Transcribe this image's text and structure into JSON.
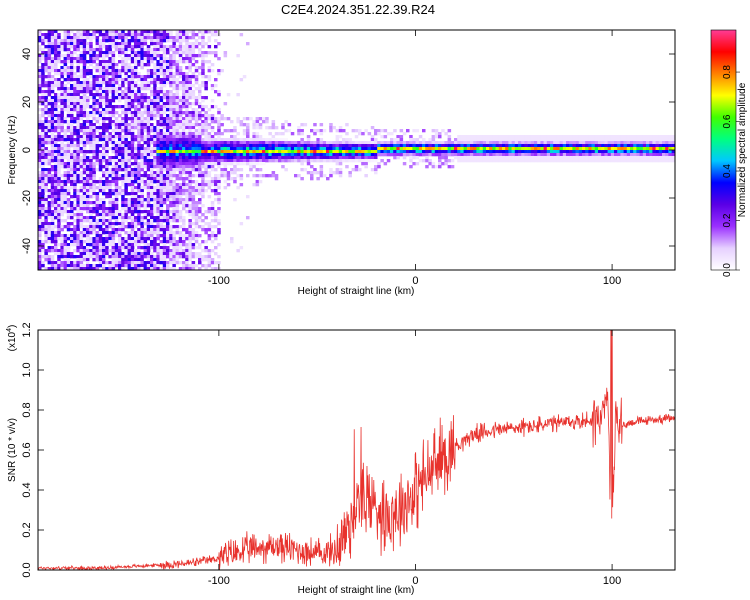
{
  "title": "C2E4.2024.351.22.39.R24",
  "chart_data": [
    {
      "type": "heatmap",
      "xlabel": "Height of straight line (km)",
      "ylabel": "Frequency (Hz)",
      "xlim": [
        -192,
        132
      ],
      "ylim": [
        -50,
        50
      ],
      "xticks": [
        -100,
        0,
        100
      ],
      "yticks": [
        -40,
        -20,
        0,
        20,
        40
      ],
      "colorbar": {
        "label": "Normalized spectral amplitude",
        "range": [
          0,
          0.97
        ],
        "ticks": [
          0.0,
          0.2,
          0.4,
          0.6,
          0.8
        ],
        "colors": [
          "#ffffff",
          "#e6d0ff",
          "#9b30ff",
          "#5a00e6",
          "#0000ff",
          "#00c8ff",
          "#00ff80",
          "#40ff00",
          "#ffff00",
          "#ff8000",
          "#ff0000",
          "#ff3c96"
        ]
      },
      "regions": [
        {
          "name": "noise",
          "x_range": [
            -192,
            -100
          ],
          "freq_range": [
            -50,
            50
          ]
        },
        {
          "name": "signal-band",
          "x_range": [
            -130,
            132
          ],
          "freq_range": [
            -4,
            4
          ],
          "center_freq": 0
        }
      ]
    },
    {
      "type": "line",
      "xlabel": "Height of straight line (km)",
      "ylabel": "SNR (10 * v/v)",
      "multiplier": "(x10",
      "multiplier_exp": "4",
      "xlim": [
        -192,
        132
      ],
      "ylim": [
        0,
        1.2
      ],
      "xticks": [
        -100,
        0,
        100
      ],
      "yticks": [
        0.0,
        0.2,
        0.4,
        0.6,
        0.8,
        1.0,
        1.2
      ],
      "color": "#e8322d",
      "series": [
        {
          "x": [
            -192,
            -160,
            -140,
            -120,
            -110,
            -100,
            -90,
            -80,
            -70,
            -60,
            -50,
            -40,
            -35,
            -30,
            -25,
            -20,
            -15,
            -10,
            -5,
            0,
            5,
            10,
            15,
            20,
            25,
            30,
            40,
            50,
            60,
            70,
            80,
            90,
            95,
            98,
            100,
            102,
            105,
            110,
            120,
            132
          ],
          "y": [
            0.01,
            0.01,
            0.02,
            0.03,
            0.04,
            0.06,
            0.09,
            0.11,
            0.12,
            0.1,
            0.08,
            0.1,
            0.2,
            0.3,
            0.36,
            0.32,
            0.28,
            0.3,
            0.34,
            0.4,
            0.46,
            0.52,
            0.58,
            0.62,
            0.65,
            0.68,
            0.7,
            0.71,
            0.72,
            0.73,
            0.74,
            0.75,
            0.78,
            0.85,
            0.2,
            0.8,
            0.72,
            0.74,
            0.75,
            0.76
          ]
        }
      ]
    }
  ]
}
